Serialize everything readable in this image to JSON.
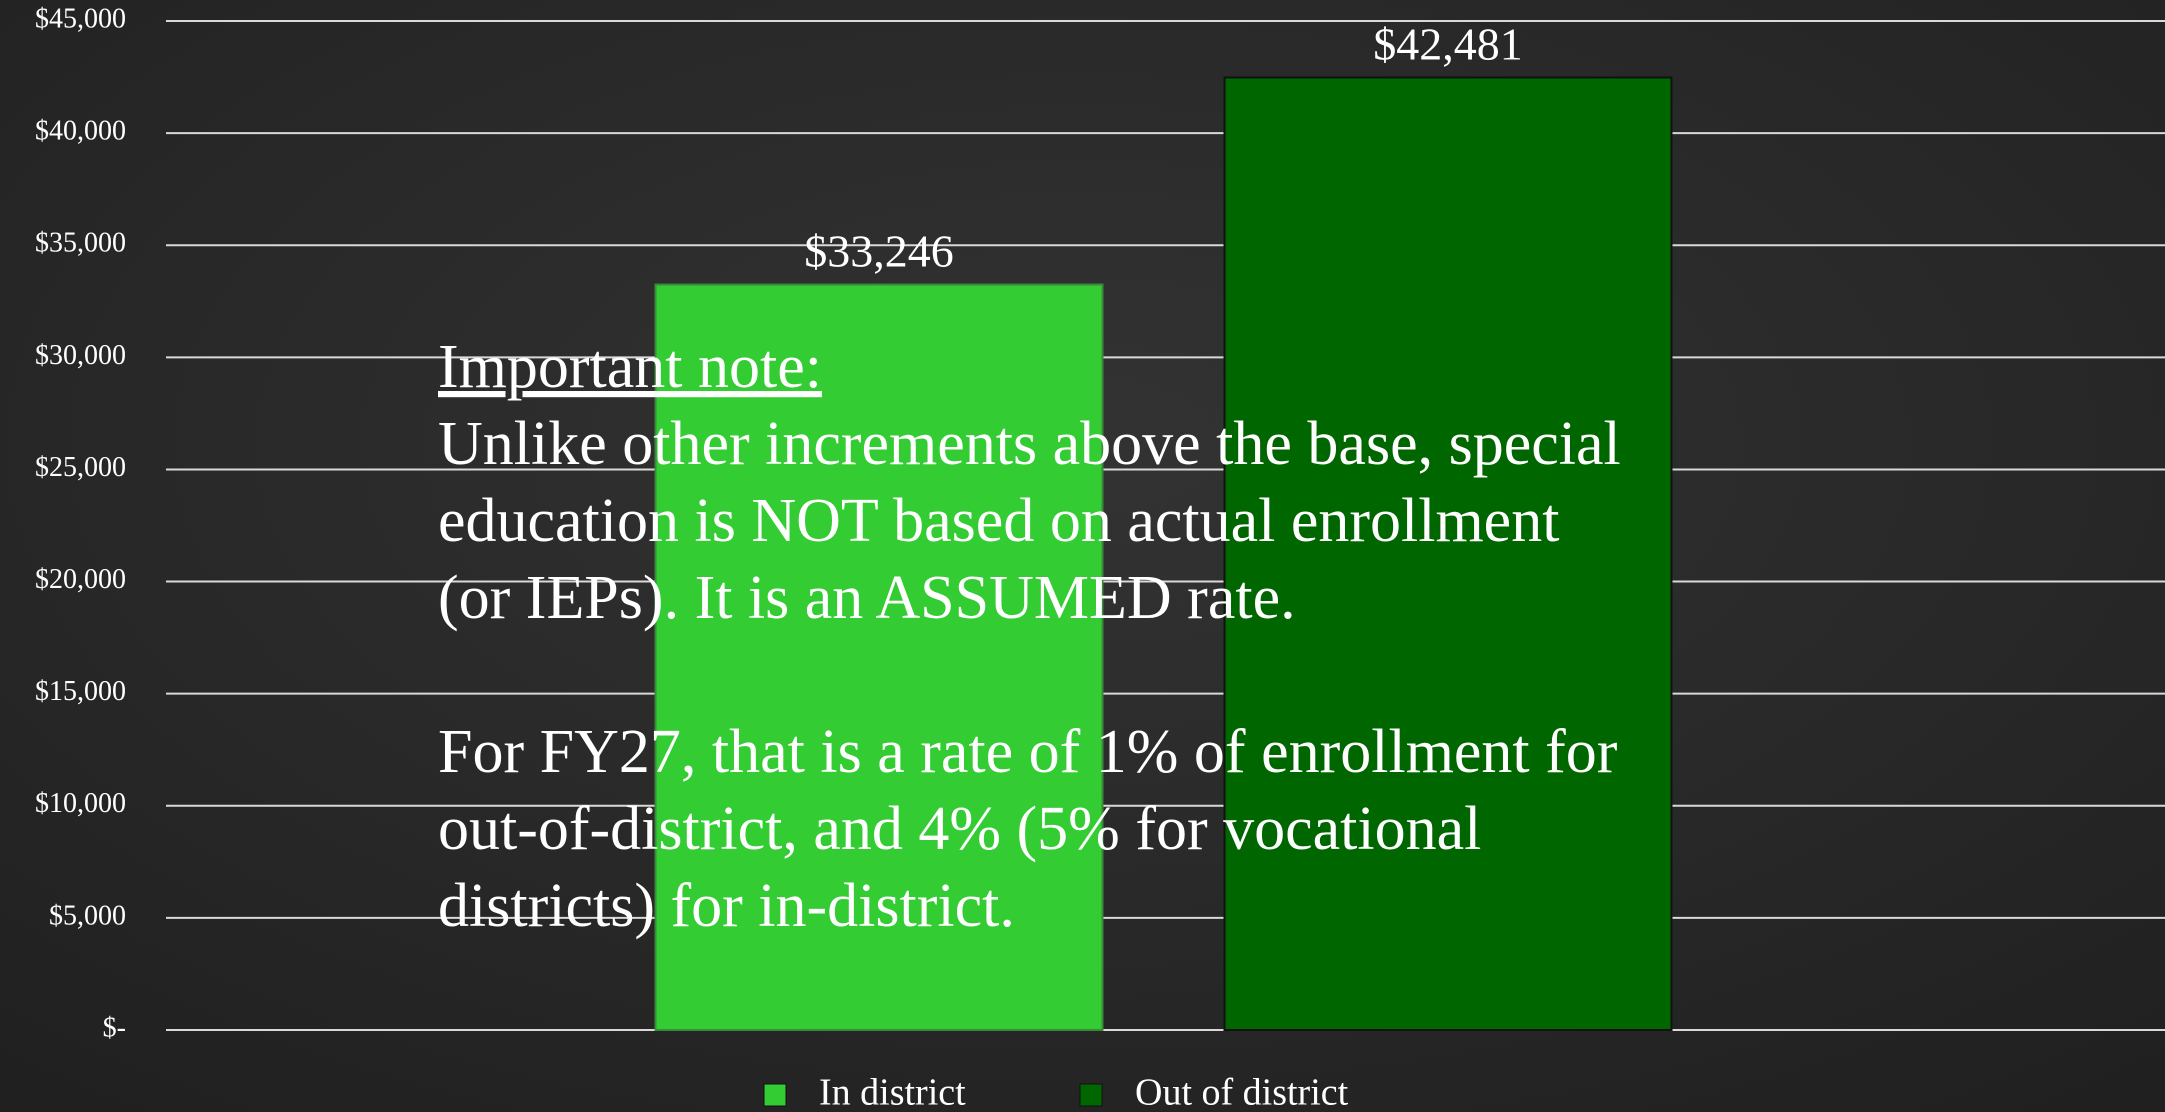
{
  "chart_data": {
    "type": "bar",
    "series": [
      {
        "name": "In district",
        "color": "#33cc33",
        "values": [
          33246
        ],
        "value_labels": [
          "$33,246"
        ]
      },
      {
        "name": "Out of district",
        "color": "#006600",
        "values": [
          42481
        ],
        "value_labels": [
          "$42,481"
        ]
      }
    ],
    "ylim": [
      0,
      45000
    ],
    "yticks": [
      {
        "value": 0,
        "label": "$-"
      },
      {
        "value": 5000,
        "label": "$5,000"
      },
      {
        "value": 10000,
        "label": "$10,000"
      },
      {
        "value": 15000,
        "label": "$15,000"
      },
      {
        "value": 20000,
        "label": "$20,000"
      },
      {
        "value": 25000,
        "label": "$25,000"
      },
      {
        "value": 30000,
        "label": "$30,000"
      },
      {
        "value": 35000,
        "label": "$35,000"
      },
      {
        "value": 40000,
        "label": "$40,000"
      },
      {
        "value": 45000,
        "label": "$45,000"
      }
    ],
    "grid": true,
    "legend": "bottom",
    "annotation": {
      "title": "Important note:",
      "paragraphs": [
        [
          "Unlike other increments above the base, special",
          "education is NOT based on actual enrollment",
          "(or IEPs). It is an ASSUMED rate."
        ],
        [
          "For FY27, that is a rate of 1% of enrollment for",
          "out-of-district, and 4% (5% for vocational",
          "districts) for in-district."
        ]
      ]
    }
  }
}
